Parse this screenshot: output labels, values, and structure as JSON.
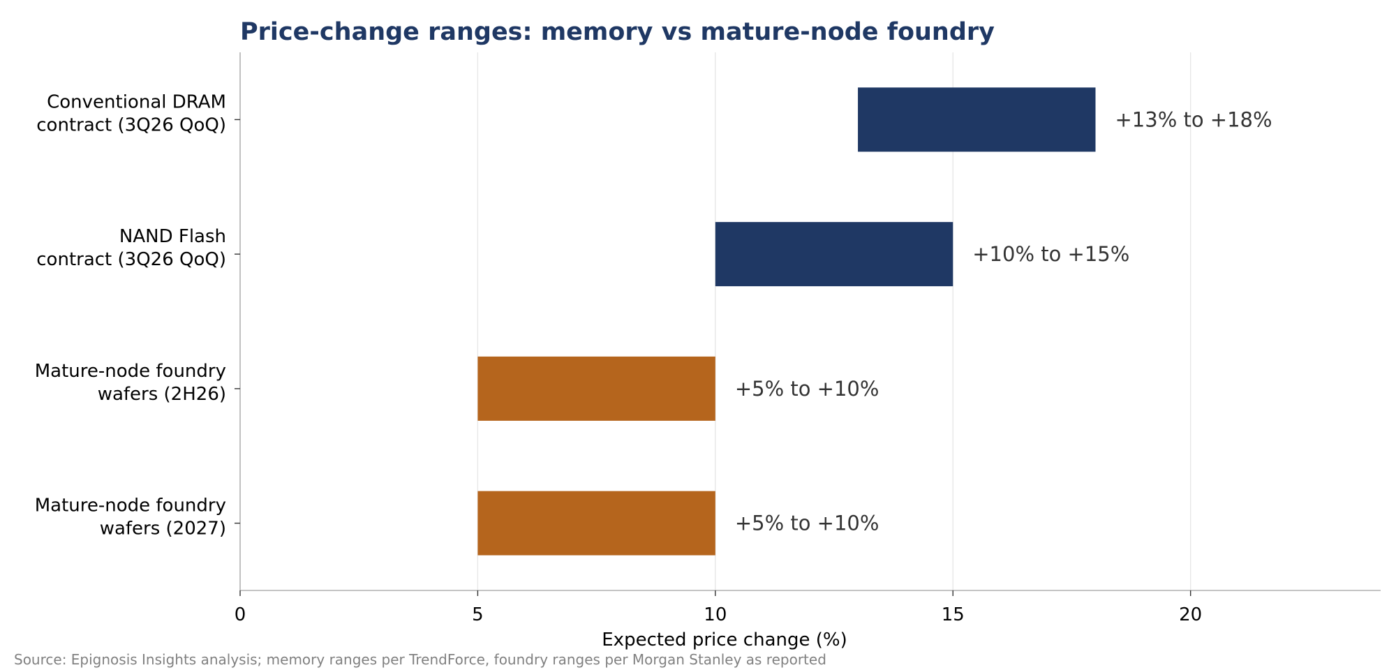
{
  "chart_data": {
    "type": "bar",
    "orientation": "horizontal",
    "title": "Price-change ranges: memory vs mature-node foundry",
    "xlabel": "Expected price change (%)",
    "ylabel": "",
    "xlim": [
      0,
      24
    ],
    "xticks": [
      0,
      5,
      10,
      15,
      20
    ],
    "grid": "vertical",
    "categories": [
      [
        "Conventional DRAM",
        "contract (3Q26 QoQ)"
      ],
      [
        "NAND Flash",
        "contract (3Q26 QoQ)"
      ],
      [
        "Mature-node foundry",
        "wafers (2H26)"
      ],
      [
        "Mature-node foundry",
        "wafers (2027)"
      ]
    ],
    "ranges": [
      {
        "low": 13,
        "high": 18,
        "label": "+13% to +18%",
        "color": "#1f3864"
      },
      {
        "low": 10,
        "high": 15,
        "label": "+10% to +15%",
        "color": "#1f3864"
      },
      {
        "low": 5,
        "high": 10,
        "label": "+5% to +10%",
        "color": "#b5651d"
      },
      {
        "low": 5,
        "high": 10,
        "label": "+5% to +10%",
        "color": "#b5651d"
      }
    ],
    "source": "Source: Epignosis Insights analysis; memory ranges per TrendForce, foundry ranges per Morgan Stanley as reported"
  }
}
